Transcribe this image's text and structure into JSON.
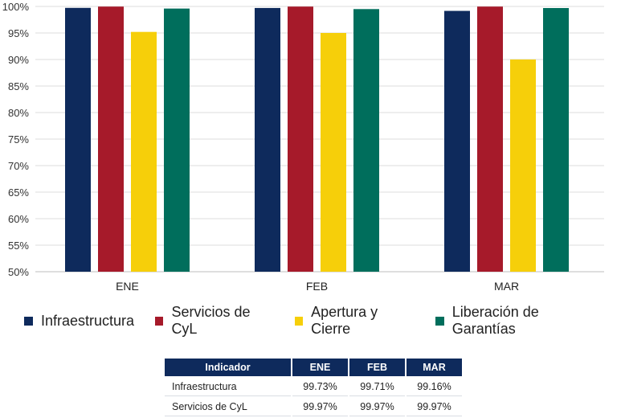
{
  "chart_data": {
    "type": "bar",
    "categories": [
      "ENE",
      "FEB",
      "MAR"
    ],
    "series": [
      {
        "name": "Infraestructura",
        "color": "#0e2a5c",
        "values": [
          99.73,
          99.71,
          99.16
        ]
      },
      {
        "name": "Servicios de CyL",
        "color": "#a61a2a",
        "values": [
          99.97,
          99.97,
          99.97
        ]
      },
      {
        "name": "Apertura y Cierre",
        "color": "#f6cf0a",
        "values": [
          95.2,
          95.0,
          90.0
        ]
      },
      {
        "name": "Liberación de Garantías",
        "color": "#006e5c",
        "values": [
          99.6,
          99.5,
          99.7
        ]
      }
    ],
    "ylim": [
      50,
      100
    ],
    "yticks": [
      "50%",
      "55%",
      "60%",
      "65%",
      "70%",
      "75%",
      "80%",
      "85%",
      "90%",
      "95%",
      "100%"
    ],
    "grid": true,
    "legend_position": "bottom"
  },
  "table": {
    "headers": [
      "Indicador",
      "ENE",
      "FEB",
      "MAR"
    ],
    "rows": [
      [
        "Infraestructura",
        "99.73%",
        "99.71%",
        "99.16%"
      ],
      [
        "Servicios de CyL",
        "99.97%",
        "99.97%",
        "99.97%"
      ]
    ]
  }
}
